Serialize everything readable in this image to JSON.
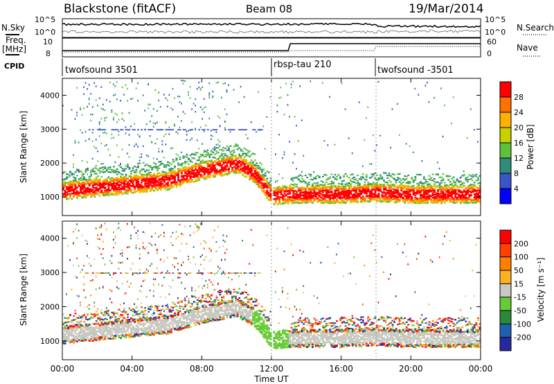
{
  "header": {
    "station": "Blackstone (fitACF)",
    "beam": "Beam 08",
    "date": "19/Mar/2014"
  },
  "noise_panel": {
    "left_label": "N.Sky",
    "left_ticks": [
      "10^5",
      "10^0"
    ],
    "right_label": "N.Search",
    "right_ticks": [
      "10^5",
      "10^0"
    ]
  },
  "freq_panel": {
    "left_label_1": "Freq.",
    "left_label_2": "[MHz]",
    "left_ticks": [
      "10",
      "8"
    ],
    "right_label": "Nave",
    "right_ticks": [
      "60",
      "0"
    ]
  },
  "cpid": {
    "label": "CPID",
    "segments": [
      {
        "name": "twofsound 3501",
        "start": 0,
        "end": 12
      },
      {
        "name": "rbsp-tau 210",
        "start": 12,
        "end": 18
      },
      {
        "name": "twofsound -3501",
        "start": 18,
        "end": 24
      }
    ]
  },
  "colors": {
    "power_scale": [
      "#0000ff",
      "#3a55c8",
      "#2f8c7a",
      "#5cc23a",
      "#c8d000",
      "#ffb000",
      "#ff7000",
      "#ff0000"
    ],
    "velocity_scale": [
      "#2828a0",
      "#2060b0",
      "#2a8a3c",
      "#66cc33",
      "#c8c8c0",
      "#ffb020",
      "#ff8000",
      "#ff4000",
      "#ff0000"
    ]
  },
  "chart_data": [
    {
      "type": "heatmap",
      "name": "power",
      "ylabel": "Slant Range [km]",
      "xlabel": "Time UT",
      "xlim": [
        0,
        24
      ],
      "ylim": [
        450,
        4500
      ],
      "x_ticks": [
        "00:00",
        "04:00",
        "08:00",
        "12:00",
        "16:00",
        "20:00",
        "00:00"
      ],
      "y_ticks": [
        1000,
        2000,
        3000,
        4000
      ],
      "colorbar": {
        "label": "Power [dB]",
        "ticks": [
          4,
          8,
          12,
          16,
          20,
          24,
          28
        ]
      },
      "main_echo_band_km": [
        [
          0,
          1200
        ],
        [
          2,
          1300
        ],
        [
          4,
          1400
        ],
        [
          6,
          1500
        ],
        [
          8,
          1800
        ],
        [
          10,
          2000
        ],
        [
          11,
          1700
        ],
        [
          12,
          1050
        ],
        [
          13,
          1100
        ],
        [
          16,
          1100
        ],
        [
          18,
          1150
        ],
        [
          20,
          1100
        ],
        [
          24,
          1100
        ]
      ]
    },
    {
      "type": "heatmap",
      "name": "velocity",
      "ylabel": "Slant Range [km]",
      "xlabel": "Time UT",
      "xlim": [
        0,
        24
      ],
      "ylim": [
        450,
        4500
      ],
      "x_ticks": [
        "00:00",
        "04:00",
        "08:00",
        "12:00",
        "16:00",
        "20:00",
        "00:00"
      ],
      "y_ticks": [
        1000,
        2000,
        3000,
        4000
      ],
      "colorbar": {
        "label": "Velocity [m s⁻¹]",
        "ticks": [
          200,
          100,
          50,
          15,
          -15,
          -50,
          -100,
          -200
        ]
      }
    }
  ]
}
